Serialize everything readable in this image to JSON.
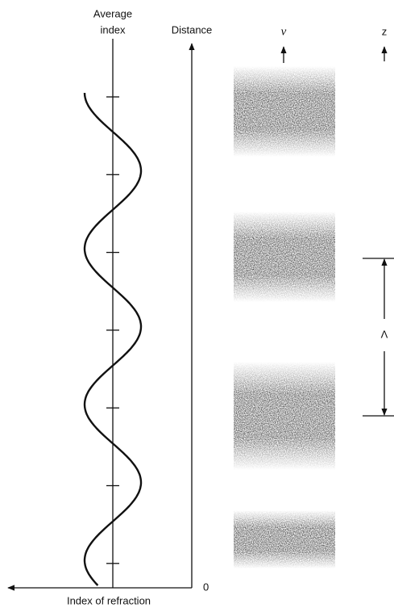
{
  "labels": {
    "average_index": [
      "Average",
      "index"
    ],
    "distance": "Distance",
    "v": "v",
    "z": "z",
    "period": "Λ",
    "origin": "0",
    "x_axis": "Index of refraction"
  }
}
